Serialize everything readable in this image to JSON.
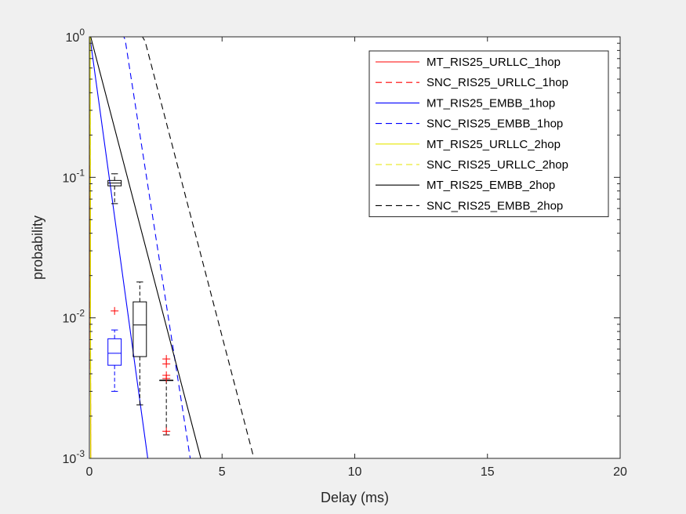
{
  "chart_data": {
    "type": "line",
    "xlabel": "Delay (ms)",
    "ylabel": "probability",
    "xlim": [
      0,
      20
    ],
    "ylim": [
      0.001,
      1
    ],
    "yscale": "log",
    "grid": false,
    "legend_position": "top-right",
    "x_ticks": [
      {
        "value": 0,
        "label": "0"
      },
      {
        "value": 5,
        "label": "5"
      },
      {
        "value": 10,
        "label": "10"
      },
      {
        "value": 15,
        "label": "15"
      },
      {
        "value": 20,
        "label": "20"
      }
    ],
    "y_ticks": [
      {
        "value": 1,
        "base": "10",
        "exp": "0"
      },
      {
        "value": 0.1,
        "base": "10",
        "exp": "-1"
      },
      {
        "value": 0.01,
        "base": "10",
        "exp": "-2"
      },
      {
        "value": 0.001,
        "base": "10",
        "exp": "-3"
      }
    ],
    "series": [
      {
        "name": "MT_RIS25_URLLC_1hop",
        "color": "#ff0000",
        "dash": "solid",
        "x": [
          0.02,
          0.05
        ],
        "y": [
          1,
          0.001
        ]
      },
      {
        "name": "SNC_RIS25_URLLC_1hop",
        "color": "#ff0000",
        "dash": "dashed",
        "x": [
          0.02,
          0.05
        ],
        "y": [
          1,
          0.001
        ]
      },
      {
        "name": "MT_RIS25_EMBB_1hop",
        "color": "#0000ff",
        "dash": "solid",
        "x": [
          0.02,
          2.2
        ],
        "y": [
          1,
          0.001
        ]
      },
      {
        "name": "SNC_RIS25_EMBB_1hop",
        "color": "#0000ff",
        "dash": "dashed",
        "x": [
          0,
          1.3,
          1.35,
          3.8
        ],
        "y": [
          1,
          1,
          0.95,
          0.001
        ]
      },
      {
        "name": "MT_RIS25_URLLC_2hop",
        "color": "#e6e600",
        "dash": "solid",
        "x": [
          0.03,
          0.05
        ],
        "y": [
          1,
          0.001
        ]
      },
      {
        "name": "SNC_RIS25_URLLC_2hop",
        "color": "#e6e600",
        "dash": "dashed",
        "x": [
          0.03,
          0.05
        ],
        "y": [
          1,
          0.001
        ]
      },
      {
        "name": "MT_RIS25_EMBB_2hop",
        "color": "#000000",
        "dash": "solid",
        "x": [
          0.05,
          4.2
        ],
        "y": [
          1,
          0.001
        ]
      },
      {
        "name": "SNC_RIS25_EMBB_2hop",
        "color": "#000000",
        "dash": "dashed",
        "x": [
          0,
          2.0,
          2.1,
          6.2
        ],
        "y": [
          1,
          1,
          0.93,
          0.001
        ]
      }
    ],
    "boxplots": [
      {
        "x": 0.95,
        "halfwidth": 0.5,
        "q1": 0.0046,
        "median": 0.0056,
        "q3": 0.0071,
        "whisker_low": 0.003,
        "whisker_high": 0.0082,
        "color": "#0000ff",
        "outliers": [
          0.0112
        ]
      },
      {
        "x": 0.95,
        "halfwidth": 0.5,
        "q1": 0.087,
        "median": 0.091,
        "q3": 0.095,
        "whisker_low": 0.065,
        "whisker_high": 0.106,
        "color": "#000000",
        "outliers": []
      },
      {
        "x": 1.9,
        "halfwidth": 0.5,
        "q1": 0.0053,
        "median": 0.0089,
        "q3": 0.013,
        "whisker_low": 0.0024,
        "whisker_high": 0.018,
        "color": "#000000",
        "outliers": []
      },
      {
        "x": 2.9,
        "halfwidth": 0.5,
        "q1": 0.0036,
        "median": 0.0036,
        "q3": 0.0036,
        "whisker_low": 0.00147,
        "whisker_high": 0.0036,
        "color": "#000000",
        "outliers": [
          0.0051,
          0.0047,
          0.0039,
          0.0037,
          0.00156
        ]
      }
    ]
  },
  "colors": {
    "figure_background": "#f0f0f0",
    "axes_background": "#ffffff",
    "axes_color": "#262626",
    "outlier": "#ff0000"
  }
}
